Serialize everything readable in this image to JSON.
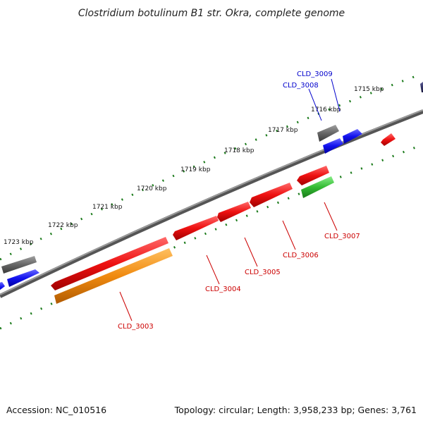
{
  "title": "Clostridium botulinum B1 str. Okra, complete genome",
  "footer": {
    "accession": "Accession: NC_010516",
    "summary": "Topology: circular; Length: 3,958,233 bp; Genes: 3,761"
  },
  "colors": {
    "backbone": "#808080",
    "tick": "#1a7a1a",
    "label_red": "#cc0000",
    "label_blue": "#0000cc",
    "gene_red": "#ee1111",
    "gene_blue": "#1111ee",
    "gene_gray": "#666666",
    "gene_orange": "#f08a10",
    "gene_green": "#33bb33",
    "gene_navy": "#3a3a70"
  },
  "kbp_labels": [
    "1715 kbp",
    "1716 kbp",
    "1717 kbp",
    "1718 kbp",
    "1719 kbp",
    "1720 kbp",
    "1721 kbp",
    "1722 kbp",
    "1723 kbp"
  ],
  "gene_labels": {
    "cld_3003": "CLD_3003",
    "cld_3004": "CLD_3004",
    "cld_3005": "CLD_3005",
    "cld_3006": "CLD_3006",
    "cld_3007": "CLD_3007",
    "cld_3008": "CLD_3008",
    "cld_3009": "CLD_3009"
  }
}
